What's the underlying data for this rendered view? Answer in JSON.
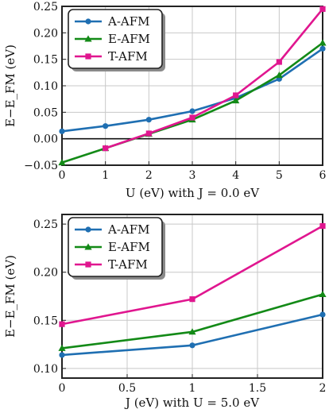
{
  "chart_data": [
    {
      "type": "line",
      "xlabel": "U (eV) with J = 0.0 eV",
      "ylabel": "E−E_FM (eV)",
      "xlim": [
        0,
        6
      ],
      "ylim": [
        -0.05,
        0.25
      ],
      "xticks": [
        "0",
        "1",
        "2",
        "3",
        "4",
        "5",
        "6"
      ],
      "yticks": [
        "−0.05",
        "0.00",
        "0.05",
        "0.10",
        "0.15",
        "0.20",
        "0.25"
      ],
      "x": [
        0,
        1,
        2,
        3,
        4,
        5,
        6
      ],
      "grid": true,
      "legend_position": "top-left",
      "zero_line": true,
      "series": [
        {
          "name": "A-AFM",
          "color": "#1f6fb2",
          "marker": "circle",
          "values": [
            0.014,
            0.024,
            0.036,
            0.052,
            0.077,
            0.113,
            0.17
          ]
        },
        {
          "name": "E-AFM",
          "color": "#138a17",
          "marker": "triangle",
          "values": [
            -0.045,
            -0.018,
            0.009,
            0.036,
            0.072,
            0.12,
            0.181
          ]
        },
        {
          "name": "T-AFM",
          "color": "#e0168f",
          "marker": "square",
          "values": [
            null,
            -0.018,
            0.01,
            0.04,
            0.082,
            0.145,
            0.245
          ]
        }
      ]
    },
    {
      "type": "line",
      "xlabel": "J (eV) with U = 5.0 eV",
      "ylabel": "E−E_FM (eV)",
      "xlim": [
        0,
        2
      ],
      "ylim": [
        0.09,
        0.26
      ],
      "xticks": [
        "0",
        "0.5",
        "1",
        "1.5",
        "2"
      ],
      "yticks": [
        "0.10",
        "0.15",
        "0.20",
        "0.25"
      ],
      "x": [
        0,
        1,
        2
      ],
      "grid": true,
      "legend_position": "top-left",
      "series": [
        {
          "name": "A-AFM",
          "color": "#1f6fb2",
          "marker": "circle",
          "values": [
            0.114,
            0.124,
            0.156
          ]
        },
        {
          "name": "E-AFM",
          "color": "#138a17",
          "marker": "triangle",
          "values": [
            0.121,
            0.138,
            0.177
          ]
        },
        {
          "name": "T-AFM",
          "color": "#e0168f",
          "marker": "square",
          "values": [
            0.146,
            0.172,
            0.248
          ]
        }
      ]
    }
  ]
}
